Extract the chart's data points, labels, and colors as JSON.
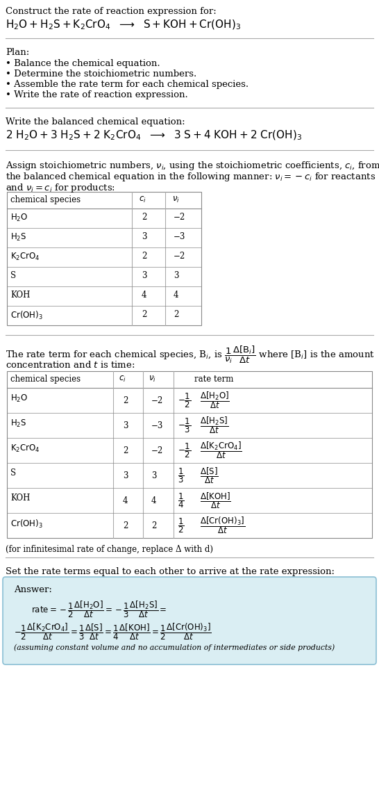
{
  "bg_color": "#ffffff",
  "text_color": "#000000",
  "answer_bg": "#daeef3",
  "answer_border": "#8bbfd4",
  "title_text": "Construct the rate of reaction expression for:",
  "plan_title": "Plan:",
  "plan_items": [
    "• Balance the chemical equation.",
    "• Determine the stoichiometric numbers.",
    "• Assemble the rate term for each chemical species.",
    "• Write the rate of reaction expression."
  ],
  "balanced_label": "Write the balanced chemical equation:",
  "stoich_intro_1": "Assign stoichiometric numbers, $\\nu_i$, using the stoichiometric coefficients, $c_i$, from",
  "stoich_intro_2": "the balanced chemical equation in the following manner: $\\nu_i = -c_i$ for reactants",
  "stoich_intro_3": "and $\\nu_i = c_i$ for products:",
  "table1_species": [
    "$\\mathrm{H_2O}$",
    "$\\mathrm{H_2S}$",
    "$\\mathrm{K_2CrO_4}$",
    "S",
    "KOH",
    "$\\mathrm{Cr(OH)_3}$"
  ],
  "table1_ci": [
    "2",
    "3",
    "2",
    "3",
    "4",
    "2"
  ],
  "table1_vi": [
    "−2",
    "−3",
    "−2",
    "3",
    "4",
    "2"
  ],
  "rate_intro_1": "The rate term for each chemical species, B$_i$, is $\\dfrac{1}{\\nu_i}\\dfrac{\\Delta[\\mathrm{B}_i]}{\\Delta t}$ where [B$_i$] is the amount",
  "rate_intro_2": "concentration and $t$ is time:",
  "table2_species": [
    "$\\mathrm{H_2O}$",
    "$\\mathrm{H_2S}$",
    "$\\mathrm{K_2CrO_4}$",
    "S",
    "KOH",
    "$\\mathrm{Cr(OH)_3}$"
  ],
  "table2_ci": [
    "2",
    "3",
    "2",
    "3",
    "4",
    "2"
  ],
  "table2_vi": [
    "−2",
    "−3",
    "−2",
    "3",
    "4",
    "2"
  ],
  "table2_rate_num": [
    "−1",
    "−1",
    "−1",
    "1",
    "1",
    "1"
  ],
  "table2_rate_den": [
    "2",
    "3",
    "2",
    "3",
    "4",
    "2"
  ],
  "table2_rate_species": [
    "$\\Delta[\\mathrm{H_2O}]$",
    "$\\Delta[\\mathrm{H_2S}]$",
    "$\\Delta[\\mathrm{K_2CrO_4}]$",
    "$\\Delta[\\mathrm{S}]$",
    "$\\Delta[\\mathrm{KOH}]$",
    "$\\Delta[\\mathrm{Cr(OH)_3}]$"
  ],
  "infinitesimal_note": "(for infinitesimal rate of change, replace Δ with d)",
  "set_rate_label": "Set the rate terms equal to each other to arrive at the rate expression:",
  "answer_title": "Answer:",
  "answer_note": "(assuming constant volume and no accumulation of intermediates or side products)"
}
